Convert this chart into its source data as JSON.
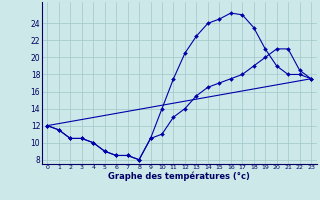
{
  "xlabel": "Graphe des températures (°c)",
  "bg_color": "#cde8e8",
  "line_color": "#0000aa",
  "xlim": [
    -0.5,
    23.5
  ],
  "ylim": [
    7.5,
    26.5
  ],
  "xticks": [
    0,
    1,
    2,
    3,
    4,
    5,
    6,
    7,
    8,
    9,
    10,
    11,
    12,
    13,
    14,
    15,
    16,
    17,
    18,
    19,
    20,
    21,
    22,
    23
  ],
  "yticks": [
    8,
    10,
    12,
    14,
    16,
    18,
    20,
    22,
    24
  ],
  "curve1_x": [
    0,
    1,
    2,
    3,
    4,
    5,
    6,
    7,
    8,
    9,
    10,
    11,
    12,
    13,
    14,
    15,
    16,
    17,
    18,
    19,
    20,
    21,
    22,
    23
  ],
  "curve1_y": [
    12,
    11.5,
    10.5,
    10.5,
    10,
    9,
    8.5,
    8.5,
    8,
    10.5,
    14,
    17.5,
    20.5,
    22.5,
    24,
    24.5,
    25.2,
    25,
    23.5,
    21,
    19,
    18,
    18,
    17.5
  ],
  "curve2_x": [
    0,
    1,
    2,
    3,
    4,
    5,
    6,
    7,
    8,
    9,
    10,
    11,
    12,
    13,
    14,
    15,
    16,
    17,
    18,
    19,
    20,
    21,
    22,
    23
  ],
  "curve2_y": [
    12,
    11.5,
    10.5,
    10.5,
    10,
    9,
    8.5,
    8.5,
    8,
    10.5,
    11,
    13,
    14,
    15.5,
    16.5,
    17,
    17.5,
    18,
    19,
    20,
    21,
    21,
    18.5,
    17.5
  ],
  "curve3_x": [
    0,
    23
  ],
  "curve3_y": [
    12,
    17.5
  ]
}
